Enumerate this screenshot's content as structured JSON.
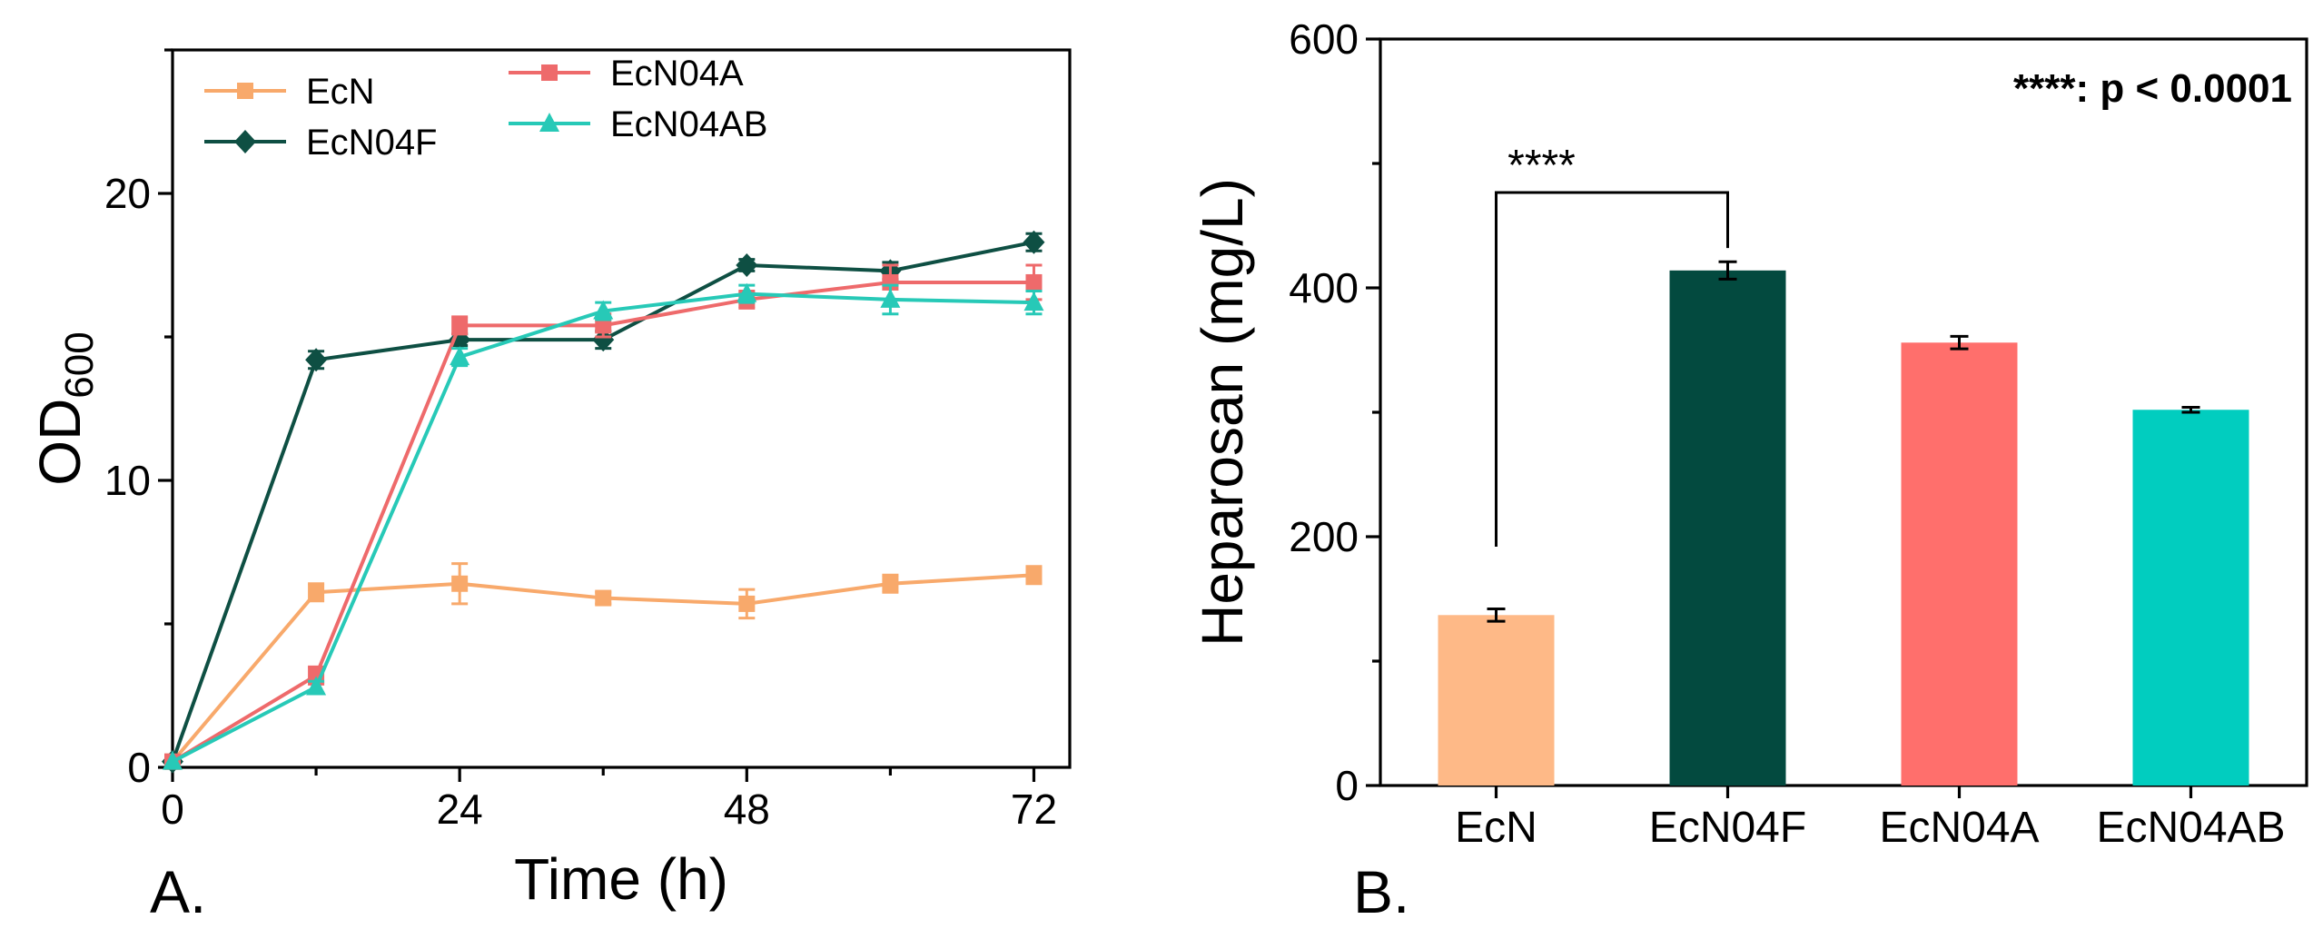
{
  "chart_data": [
    {
      "panel": "A.",
      "type": "line",
      "xlabel": "Time (h)",
      "ylabel_main": "OD",
      "ylabel_sub": "600",
      "xlim": [
        0,
        75
      ],
      "ylim": [
        0,
        25
      ],
      "xticks": [
        0,
        24,
        48,
        72
      ],
      "yticks": [
        0,
        10,
        20
      ],
      "x": [
        0,
        12,
        24,
        36,
        48,
        60,
        72
      ],
      "series": [
        {
          "name": "EcN",
          "color": "#F8A96B",
          "marker": "square",
          "values": [
            0.2,
            6.1,
            6.4,
            5.9,
            5.7,
            6.4,
            6.7
          ],
          "errors": [
            0,
            0.3,
            0.7,
            0.2,
            0.5,
            0.3,
            0.3
          ]
        },
        {
          "name": "EcN04F",
          "color": "#0E4F43",
          "marker": "diamond",
          "values": [
            0.2,
            14.2,
            14.9,
            14.9,
            17.5,
            17.3,
            18.3
          ],
          "errors": [
            0,
            0.3,
            0.2,
            0.3,
            0.2,
            0.3,
            0.3
          ]
        },
        {
          "name": "EcN04A",
          "color": "#EE6A6B",
          "marker": "square",
          "values": [
            0.2,
            3.2,
            15.4,
            15.4,
            16.3,
            16.9,
            16.9
          ],
          "errors": [
            0,
            0.3,
            0.3,
            0.4,
            0.3,
            0.6,
            0.6
          ]
        },
        {
          "name": "EcN04AB",
          "color": "#27C9B7",
          "marker": "triangle",
          "values": [
            0.2,
            2.8,
            14.3,
            15.9,
            16.5,
            16.3,
            16.2
          ],
          "errors": [
            0,
            0.2,
            0.3,
            0.3,
            0.3,
            0.5,
            0.4
          ]
        }
      ],
      "legend_position": "top-left"
    },
    {
      "panel": "B.",
      "type": "bar",
      "ylabel": "Heparosan (mg/L)",
      "ylim": [
        0,
        600
      ],
      "yticks": [
        0,
        200,
        400,
        600
      ],
      "categories": [
        "EcN",
        "EcN04F",
        "EcN04A",
        "EcN04AB"
      ],
      "values": [
        137,
        414,
        356,
        302
      ],
      "errors": [
        5,
        7,
        5,
        2
      ],
      "colors": [
        "#FEB987",
        "#034A3F",
        "#FF6F6C",
        "#01CDBF"
      ],
      "significance": {
        "label": "****",
        "between": [
          "EcN",
          "EcN04F"
        ]
      },
      "annotation": "****: p < 0.0001"
    }
  ]
}
